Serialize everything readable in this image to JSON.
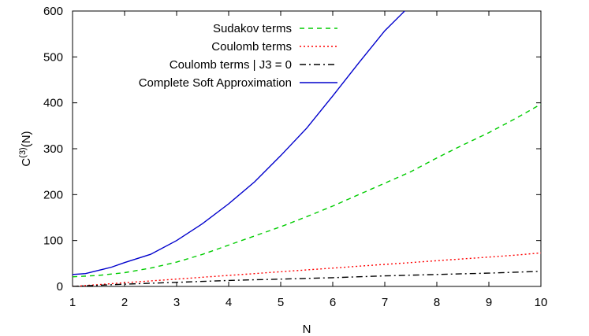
{
  "chart_data": {
    "type": "line",
    "title": "",
    "xlabel": "N",
    "ylabel": "C",
    "ylabel_superscript": "(3)",
    "ylabel_suffix": "(N)",
    "xlim": [
      1,
      10
    ],
    "ylim": [
      0,
      600
    ],
    "xticks": [
      1,
      2,
      3,
      4,
      5,
      6,
      7,
      8,
      9,
      10
    ],
    "yticks": [
      0,
      100,
      200,
      300,
      400,
      500,
      600
    ],
    "grid": false,
    "legend_position": "top-center",
    "series": [
      {
        "name": "Sudakov terms",
        "color": "#00cc00",
        "dash": "dashed",
        "x": [
          1,
          1.5,
          2,
          2.5,
          3,
          3.5,
          4,
          4.5,
          5,
          5.5,
          6,
          6.5,
          7,
          7.5,
          8,
          8.5,
          9,
          9.5,
          10
        ],
        "y": [
          21,
          24,
          30,
          40,
          53,
          70,
          90,
          110,
          130,
          152,
          175,
          200,
          225,
          250,
          280,
          308,
          335,
          365,
          397
        ]
      },
      {
        "name": "Coulomb terms",
        "color": "#ff0000",
        "dash": "dotted",
        "x": [
          1,
          1.5,
          2,
          2.5,
          3,
          3.5,
          4,
          4.5,
          5,
          5.5,
          6,
          6.5,
          7,
          7.5,
          8,
          8.5,
          9,
          9.5,
          10
        ],
        "y": [
          0,
          4,
          8,
          12,
          16,
          20,
          24,
          28,
          32,
          36,
          40,
          44,
          48,
          52,
          56,
          60,
          64,
          68,
          73
        ]
      },
      {
        "name": "Coulomb terms | J3 = 0",
        "color": "#000000",
        "dash": "dash-dot",
        "x": [
          1,
          2,
          3,
          4,
          5,
          6,
          7,
          8,
          9,
          10
        ],
        "y": [
          0,
          5,
          9,
          13,
          16,
          19,
          23,
          26,
          29,
          33
        ]
      },
      {
        "name": "Complete Soft Approximation",
        "color": "#0000cc",
        "dash": "solid",
        "x": [
          1,
          1.25,
          1.5,
          1.75,
          2,
          2.5,
          3,
          3.5,
          4,
          4.5,
          5,
          5.5,
          6,
          6.5,
          7,
          7.4
        ],
        "y": [
          26,
          28,
          35,
          42,
          52,
          70,
          100,
          137,
          180,
          228,
          285,
          345,
          415,
          487,
          557,
          602
        ]
      }
    ]
  }
}
